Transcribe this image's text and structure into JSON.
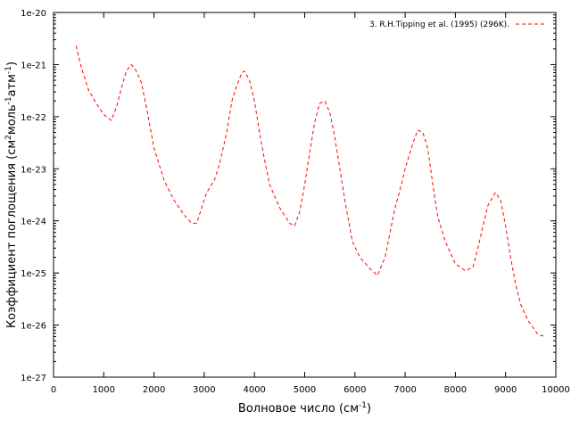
{
  "chart_data": {
    "type": "line",
    "title": "",
    "xlabel": {
      "text": "Волновое число (см",
      "sup": "-1",
      "tail": ")"
    },
    "ylabel": {
      "parts": [
        {
          "text": "Коэффициент поглощения (см"
        },
        {
          "sup": "2"
        },
        {
          "text": "моль"
        },
        {
          "sup": "-1"
        },
        {
          "text": "атм"
        },
        {
          "sup": "-1"
        },
        {
          "text": ")"
        }
      ]
    },
    "xlim": [
      0,
      10000
    ],
    "ylim_log10": [
      -27,
      -20
    ],
    "y_scale": "log",
    "grid": false,
    "legend_position": "top-right",
    "x_ticks": [
      "0",
      "1000",
      "2000",
      "3000",
      "4000",
      "5000",
      "6000",
      "7000",
      "8000",
      "9000",
      "10000"
    ],
    "x_tick_values": [
      0,
      1000,
      2000,
      3000,
      4000,
      5000,
      6000,
      7000,
      8000,
      9000,
      10000
    ],
    "y_ticks": [
      "1e-27",
      "1e-26",
      "1e-25",
      "1e-24",
      "1e-23",
      "1e-22",
      "1e-21",
      "1e-20"
    ],
    "y_tick_exponents": [
      -27,
      -26,
      -25,
      -24,
      -23,
      -22,
      -21,
      -20
    ],
    "series": [
      {
        "name": "3. R.H.Tipping et al. (1995) (296K).",
        "color": "#ff0000",
        "dash": "dashed",
        "x": [
          450,
          550,
          700,
          850,
          1000,
          1150,
          1250,
          1350,
          1450,
          1550,
          1650,
          1750,
          1850,
          2000,
          2200,
          2400,
          2600,
          2750,
          2850,
          2950,
          3050,
          3200,
          3300,
          3450,
          3550,
          3650,
          3750,
          3800,
          3900,
          4000,
          4100,
          4200,
          4300,
          4500,
          4700,
          4800,
          4900,
          5000,
          5100,
          5200,
          5300,
          5400,
          5500,
          5600,
          5700,
          5800,
          5950,
          6100,
          6300,
          6450,
          6600,
          6700,
          6800,
          6900,
          7000,
          7150,
          7250,
          7350,
          7450,
          7550,
          7650,
          7800,
          8000,
          8200,
          8350,
          8450,
          8550,
          8650,
          8800,
          8900,
          9000,
          9100,
          9200,
          9300,
          9450,
          9650,
          9800
        ],
        "y": [
          2.3e-21,
          9e-22,
          3.2e-22,
          1.8e-22,
          1.1e-22,
          8.5e-23,
          1.5e-22,
          3.5e-22,
          7.5e-22,
          1e-21,
          7.5e-22,
          4.5e-22,
          1.5e-22,
          2.5e-23,
          6e-24,
          2.5e-24,
          1.3e-24,
          9e-25,
          9e-25,
          1.8e-24,
          3.5e-24,
          6e-24,
          1.2e-23,
          5e-23,
          2e-22,
          4e-22,
          7e-22,
          7.5e-22,
          5e-22,
          2e-22,
          5e-23,
          1.5e-23,
          5e-24,
          1.8e-24,
          9e-25,
          8e-25,
          1.5e-24,
          5e-24,
          2e-23,
          8e-23,
          1.8e-22,
          2e-22,
          1.2e-22,
          4e-23,
          1e-23,
          2.5e-24,
          4e-25,
          2e-25,
          1.2e-25,
          9e-26,
          2e-25,
          6e-25,
          1.8e-24,
          4e-24,
          1e-23,
          3e-23,
          5.5e-23,
          5e-23,
          2.5e-23,
          5e-24,
          1.2e-24,
          4e-25,
          1.5e-25,
          1.1e-25,
          1.3e-25,
          3e-25,
          8e-25,
          2e-24,
          3.5e-24,
          2.5e-24,
          8e-25,
          2e-25,
          6e-26,
          2.5e-26,
          1.2e-26,
          6.5e-27,
          6e-27
        ]
      }
    ]
  }
}
